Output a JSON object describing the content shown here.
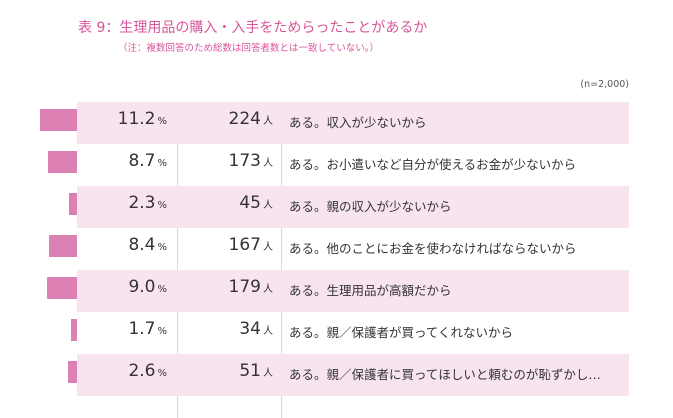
{
  "title": "表 9：生理用品の購入・入手をためらったことがあるか",
  "note": "（注：複数回答のため総数は回答者数とは一致していない。）",
  "sample": "(n=2,000)",
  "units": {
    "percent": "%",
    "count": "人"
  },
  "rows": [
    {
      "percent": "11.2",
      "count": "224",
      "reason": "ある。収入が少ないから"
    },
    {
      "percent": "8.7",
      "count": "173",
      "reason": "ある。お小遣いなど自分が使えるお金が少ないから"
    },
    {
      "percent": "2.3",
      "count": "45",
      "reason": "ある。親の収入が少ないから"
    },
    {
      "percent": "8.4",
      "count": "167",
      "reason": "ある。他のことにお金を使わなければならないから"
    },
    {
      "percent": "9.0",
      "count": "179",
      "reason": "ある。生理用品が高額だから"
    },
    {
      "percent": "1.7",
      "count": "34",
      "reason": "ある。親／保護者が買ってくれないから"
    },
    {
      "percent": "2.6",
      "count": "51",
      "reason": "ある。親／保護者に買ってほしいと頼むのが恥ずかし…"
    }
  ],
  "chart_data": {
    "type": "bar",
    "orientation": "horizontal",
    "categories": [
      "ある。収入が少ないから",
      "ある。お小遣いなど自分が使えるお金が少ないから",
      "ある。親の収入が少ないから",
      "ある。他のことにお金を使わなければならないから",
      "ある。生理用品が高額だから",
      "ある。親／保護者が買ってくれないから",
      "ある。親／保護者に買ってほしいと頼むのが恥ずかし…"
    ],
    "values": [
      11.2,
      8.7,
      2.3,
      8.4,
      9.0,
      1.7,
      2.6
    ],
    "counts": [
      224,
      173,
      45,
      167,
      179,
      34,
      51
    ],
    "bar_color": "#dd80b3",
    "row_color": "#f7e4ef",
    "title_color": "#d9559a"
  }
}
